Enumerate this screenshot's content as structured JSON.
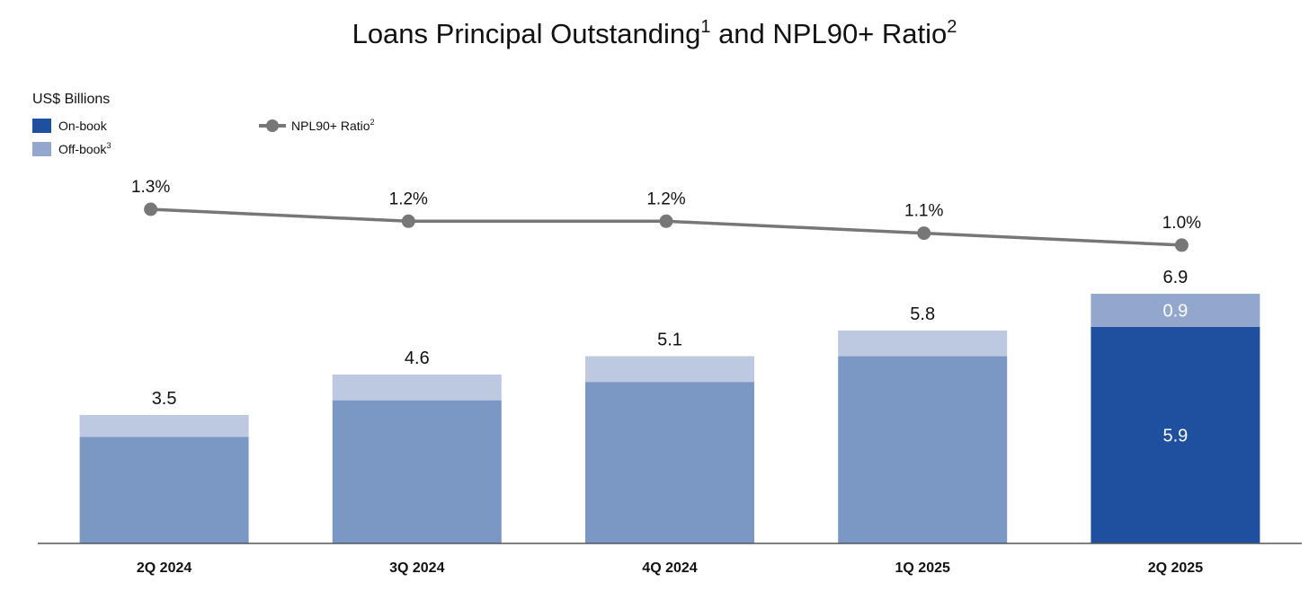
{
  "chart_data": {
    "type": "bar",
    "title": "Loans Principal Outstanding",
    "title_sup1": "1",
    "title_mid": " and NPL90+ Ratio",
    "title_sup2": "2",
    "units_label": "US$ Billions",
    "legend": {
      "on_book": "On-book",
      "off_book": "Off-book",
      "off_book_sup": "3",
      "npl": "NPL90+ Ratio",
      "npl_sup": "2"
    },
    "categories": [
      "2Q 2024",
      "3Q 2024",
      "4Q 2024",
      "1Q 2025",
      "2Q 2025"
    ],
    "series": [
      {
        "name": "On-book",
        "values": [
          2.9,
          3.9,
          4.4,
          5.1,
          5.9
        ]
      },
      {
        "name": "Off-book",
        "values": [
          0.6,
          0.7,
          0.7,
          0.7,
          0.9
        ]
      }
    ],
    "totals": [
      "3.5",
      "4.6",
      "5.1",
      "5.8",
      "6.9"
    ],
    "segment_labels": [
      {
        "index": 4,
        "on_book": "5.9",
        "off_book": "0.9"
      }
    ],
    "line_series": {
      "name": "NPL90+ Ratio",
      "values": [
        1.3,
        1.2,
        1.2,
        1.1,
        1.0
      ],
      "labels": [
        "1.3%",
        "1.2%",
        "1.2%",
        "1.1%",
        "1.0%"
      ]
    },
    "ylim": [
      0,
      6.9
    ],
    "colors": {
      "on_book": "#1f4f9f",
      "off_book": "#93a6cc",
      "on_book_past": "#7b98c5",
      "off_book_past": "#bdc8e1",
      "line": "#777777",
      "axis": "#555555"
    }
  }
}
